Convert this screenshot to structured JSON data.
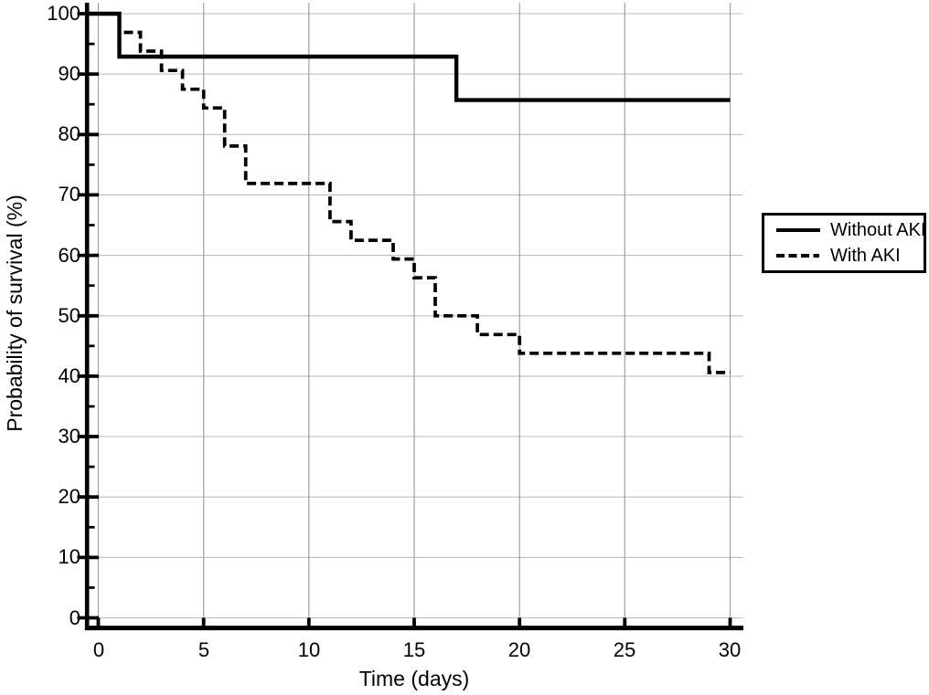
{
  "chart_data": {
    "type": "line",
    "subtype": "kaplan-meier-step-curve",
    "title": "",
    "xlabel": "Time (days)",
    "ylabel": "Probability of survival (%)",
    "xlim": [
      0,
      30
    ],
    "ylim": [
      0,
      100
    ],
    "x_ticks": [
      0,
      5,
      10,
      15,
      20,
      25,
      30
    ],
    "y_ticks": [
      0,
      10,
      20,
      30,
      40,
      50,
      60,
      70,
      80,
      90,
      100
    ],
    "y_minor_ticks": [
      5,
      15,
      25,
      35,
      45,
      55,
      65,
      75,
      85,
      95
    ],
    "grid": true,
    "legend_position": "outside-right",
    "series": [
      {
        "name": "Without AKI",
        "line_style": "solid",
        "color": "#000000",
        "points": [
          {
            "day": 0,
            "survival_pct": 100
          },
          {
            "day": 1,
            "survival_pct": 92.9
          },
          {
            "day": 17,
            "survival_pct": 85.7
          }
        ],
        "curve_end_day": 30
      },
      {
        "name": "With AKI",
        "line_style": "dashed",
        "color": "#000000",
        "points": [
          {
            "day": 0,
            "survival_pct": 100
          },
          {
            "day": 1,
            "survival_pct": 96.9
          },
          {
            "day": 2,
            "survival_pct": 93.8
          },
          {
            "day": 3,
            "survival_pct": 90.6
          },
          {
            "day": 4,
            "survival_pct": 87.5
          },
          {
            "day": 5,
            "survival_pct": 84.4
          },
          {
            "day": 6,
            "survival_pct": 78.1
          },
          {
            "day": 7,
            "survival_pct": 71.9
          },
          {
            "day": 11,
            "survival_pct": 65.6
          },
          {
            "day": 12,
            "survival_pct": 62.5
          },
          {
            "day": 14,
            "survival_pct": 59.4
          },
          {
            "day": 15,
            "survival_pct": 56.3
          },
          {
            "day": 16,
            "survival_pct": 50.0
          },
          {
            "day": 18,
            "survival_pct": 46.9
          },
          {
            "day": 20,
            "survival_pct": 43.8
          },
          {
            "day": 29,
            "survival_pct": 40.6
          }
        ],
        "curve_end_day": 30
      }
    ]
  },
  "colors": {
    "curve": "#000000",
    "axis": "#000000",
    "vertical_gridline": "#a0a0a0",
    "horizontal_gridline": "#bcbcbc",
    "background": "#ffffff",
    "text": "#000000"
  }
}
